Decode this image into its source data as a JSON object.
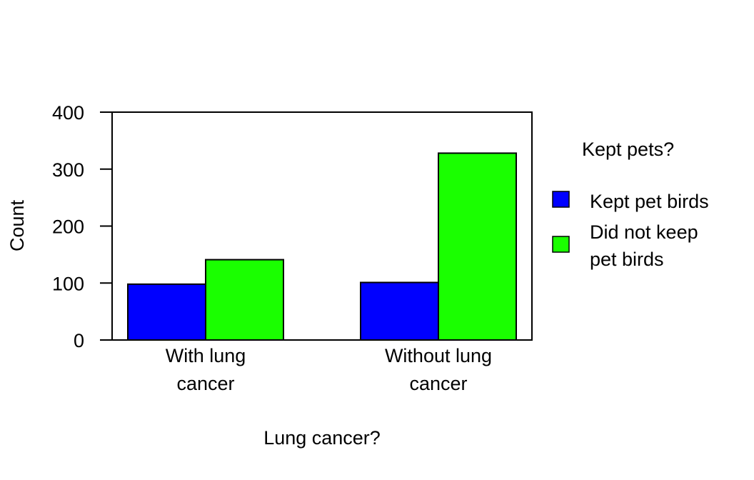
{
  "chart_data": {
    "type": "bar",
    "categories": [
      [
        "With lung",
        "cancer"
      ],
      [
        "Without lung",
        "cancer"
      ]
    ],
    "series": [
      {
        "name": "Kept pet birds",
        "values": [
          98,
          101
        ],
        "color": "#0000ff"
      },
      {
        "name": "Did not keep pet birds",
        "name_lines": [
          "Did not keep",
          "pet birds"
        ],
        "values": [
          141,
          328
        ],
        "color": "#1aff00"
      }
    ],
    "xlabel": "Lung cancer?",
    "ylabel": "Count",
    "ylim": [
      0,
      400
    ],
    "yticks": [
      0,
      100,
      200,
      300,
      400
    ],
    "legend_title": "Kept pets?",
    "legend_position": "right",
    "grid": false
  }
}
